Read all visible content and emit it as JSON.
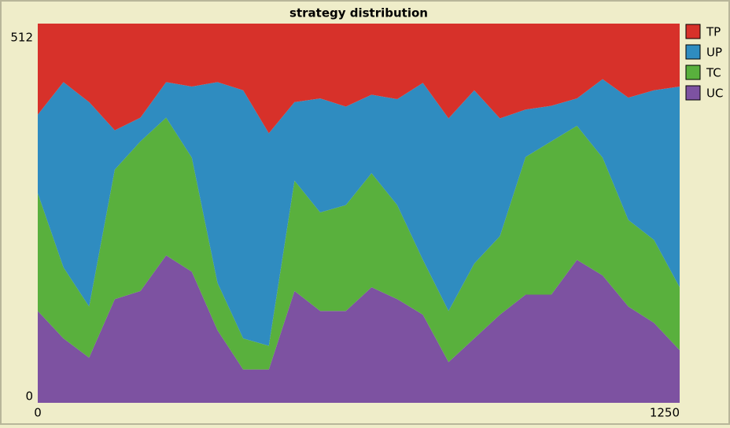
{
  "chart_data": {
    "type": "stacked_area",
    "title": "strategy distribution",
    "x": [
      0,
      50,
      100,
      150,
      200,
      250,
      300,
      350,
      400,
      450,
      500,
      550,
      600,
      650,
      700,
      750,
      800,
      850,
      900,
      950,
      1000,
      1050,
      1100,
      1150,
      1200,
      1250
    ],
    "series": [
      {
        "name": "TP",
        "color": "#d7312a",
        "values": [
          123,
          79,
          106,
          144,
          127,
          79,
          85,
          79,
          90,
          148,
          106,
          101,
          112,
          96,
          102,
          80,
          128,
          90,
          128,
          116,
          111,
          101,
          75,
          100,
          90,
          85
        ]
      },
      {
        "name": "UP",
        "color": "#2f8cc0",
        "values": [
          106,
          250,
          276,
          53,
          32,
          48,
          96,
          271,
          335,
          287,
          106,
          154,
          133,
          106,
          143,
          239,
          260,
          234,
          159,
          64,
          48,
          37,
          106,
          165,
          202,
          271
        ]
      },
      {
        "name": "TC",
        "color": "#59b03d",
        "values": [
          159,
          96,
          69,
          175,
          202,
          186,
          154,
          64,
          42,
          32,
          149,
          133,
          143,
          154,
          127,
          74,
          69,
          101,
          106,
          186,
          207,
          181,
          159,
          117,
          112,
          85
        ]
      },
      {
        "name": "UC",
        "color": "#7d52a1",
        "values": [
          124,
          87,
          61,
          140,
          151,
          199,
          177,
          98,
          45,
          45,
          151,
          124,
          124,
          156,
          140,
          119,
          55,
          87,
          119,
          146,
          146,
          193,
          172,
          130,
          108,
          71
        ]
      }
    ],
    "xlim": [
      0,
      1250
    ],
    "ylim": [
      0,
      512
    ],
    "xticks": [
      0,
      1250
    ],
    "yticks": [
      0,
      512
    ],
    "legend": "right"
  }
}
